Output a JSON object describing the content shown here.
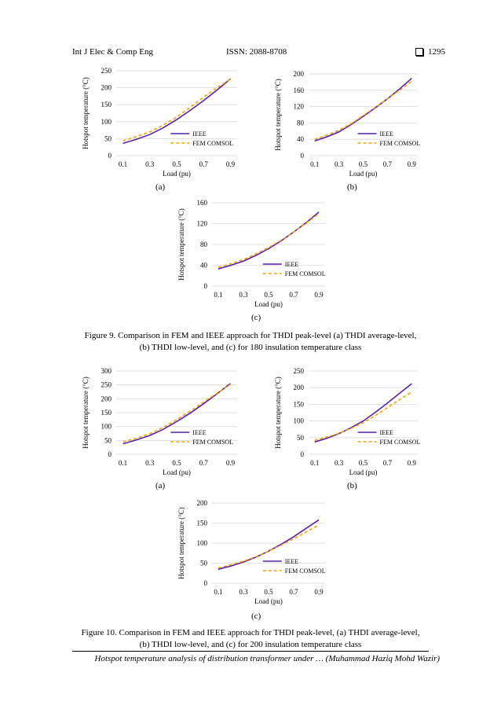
{
  "header": {
    "journal": "Int J Elec & Comp Eng",
    "issn": "ISSN: 2088-8708",
    "page": "1295"
  },
  "figure9": {
    "caption_line1": "Figure 9. Comparison in FEM and IEEE approach for THDI peak-level (a) THDI average-level,",
    "caption_line2": "(b) THDI low-level, and (c) for 180 insulation temperature class",
    "sublabels": [
      "(a)",
      "(b)",
      "(c)"
    ]
  },
  "figure10": {
    "caption_line1": "Figure 10. Comparison in FEM and IEEE approach for THDI peak-level, (a) THDI average-level,",
    "caption_line2": "(b) THDI low-level, and (c) for 200 insulation temperature class",
    "sublabels": [
      "(a)",
      "(b)",
      "(c)"
    ]
  },
  "footer": {
    "text": "Hotspot temperature analysis of distribution transformer under … (Muhammad Haziq Mohd Wazir)"
  },
  "colors": {
    "ieee": "#5b1fa6",
    "fem": "#f2a007",
    "grid": "#d9d9d9"
  },
  "chart_data": [
    {
      "id": "f9a",
      "type": "line",
      "x": [
        0.1,
        0.2,
        0.3,
        0.4,
        0.5,
        0.6,
        0.7,
        0.8,
        0.9
      ],
      "xticks": [
        "0.1",
        "0.3",
        "0.5",
        "0.7",
        "0.9"
      ],
      "ylim": [
        0,
        250
      ],
      "yticks": [
        0,
        50,
        100,
        150,
        200,
        250
      ],
      "xlabel": "Load (pu)",
      "ylabel": "Hotspot temperature (°C)",
      "series": [
        {
          "name": "IEEE",
          "values": [
            36,
            48,
            62,
            82,
            106,
            133,
            162,
            193,
            226
          ]
        },
        {
          "name": "FEM COMSOL",
          "values": [
            44,
            56,
            70,
            90,
            114,
            142,
            172,
            200,
            225
          ]
        }
      ]
    },
    {
      "id": "f9b",
      "type": "line",
      "x": [
        0.1,
        0.2,
        0.3,
        0.4,
        0.5,
        0.6,
        0.7,
        0.8,
        0.9
      ],
      "xticks": [
        "0.1",
        "0.3",
        "0.5",
        "0.7",
        "0.9"
      ],
      "ylim": [
        0,
        200
      ],
      "yticks": [
        0,
        40,
        80,
        120,
        160,
        200
      ],
      "xlabel": "Load (pu)",
      "ylabel": "Hotspot temperature (°C)",
      "series": [
        {
          "name": "IEEE",
          "values": [
            36,
            46,
            58,
            76,
            96,
            117,
            139,
            163,
            189
          ]
        },
        {
          "name": "FEM COMSOL",
          "values": [
            40,
            50,
            62,
            78,
            98,
            118,
            139,
            160,
            182
          ]
        }
      ]
    },
    {
      "id": "f9c",
      "type": "line",
      "x": [
        0.1,
        0.2,
        0.3,
        0.4,
        0.5,
        0.6,
        0.7,
        0.8,
        0.9
      ],
      "xticks": [
        "0.1",
        "0.3",
        "0.5",
        "0.7",
        "0.9"
      ],
      "ylim": [
        0,
        160
      ],
      "yticks": [
        0,
        40,
        80,
        120,
        160
      ],
      "xlabel": "Load (pu)",
      "ylabel": "Hotspot temperature (°C)",
      "series": [
        {
          "name": "IEEE",
          "values": [
            33,
            40,
            48,
            59,
            72,
            87,
            104,
            122,
            142
          ]
        },
        {
          "name": "FEM COMSOL",
          "values": [
            36,
            43,
            51,
            62,
            74,
            88,
            104,
            121,
            139
          ]
        }
      ]
    },
    {
      "id": "f10a",
      "type": "line",
      "x": [
        0.1,
        0.2,
        0.3,
        0.4,
        0.5,
        0.6,
        0.7,
        0.8,
        0.9
      ],
      "xticks": [
        "0.1",
        "0.3",
        "0.5",
        "0.7",
        "0.9"
      ],
      "ylim": [
        0,
        300
      ],
      "yticks": [
        0,
        50,
        100,
        150,
        200,
        250,
        300
      ],
      "xlabel": "Load (pu)",
      "ylabel": "Hotspot temperature (°C)",
      "series": [
        {
          "name": "IEEE",
          "values": [
            38,
            52,
            68,
            90,
            118,
            148,
            182,
            218,
            255
          ]
        },
        {
          "name": "FEM COMSOL",
          "values": [
            45,
            58,
            74,
            97,
            125,
            155,
            188,
            220,
            252
          ]
        }
      ]
    },
    {
      "id": "f10b",
      "type": "line",
      "x": [
        0.1,
        0.2,
        0.3,
        0.4,
        0.5,
        0.6,
        0.7,
        0.8,
        0.9
      ],
      "xticks": [
        "0.1",
        "0.3",
        "0.5",
        "0.7",
        "0.9"
      ],
      "ylim": [
        0,
        250
      ],
      "yticks": [
        0,
        50,
        100,
        150,
        200,
        250
      ],
      "xlabel": "Load (pu)",
      "ylabel": "Hotspot temperature (°C)",
      "series": [
        {
          "name": "IEEE",
          "values": [
            37,
            48,
            62,
            80,
            100,
            126,
            154,
            183,
            212
          ]
        },
        {
          "name": "FEM COMSOL",
          "values": [
            42,
            52,
            63,
            78,
            95,
            116,
            140,
            164,
            187
          ]
        }
      ]
    },
    {
      "id": "f10c",
      "type": "line",
      "x": [
        0.1,
        0.2,
        0.3,
        0.4,
        0.5,
        0.6,
        0.7,
        0.8,
        0.9
      ],
      "xticks": [
        "0.1",
        "0.3",
        "0.5",
        "0.7",
        "0.9"
      ],
      "ylim": [
        0,
        200
      ],
      "yticks": [
        0,
        50,
        100,
        150,
        200
      ],
      "xlabel": "Load (pu)",
      "ylabel": "Hotspot temperature (°C)",
      "series": [
        {
          "name": "IEEE",
          "values": [
            35,
            43,
            53,
            65,
            80,
            97,
            116,
            137,
            158
          ]
        },
        {
          "name": "FEM COMSOL",
          "values": [
            38,
            46,
            55,
            66,
            80,
            95,
            111,
            128,
            145
          ]
        }
      ]
    }
  ]
}
